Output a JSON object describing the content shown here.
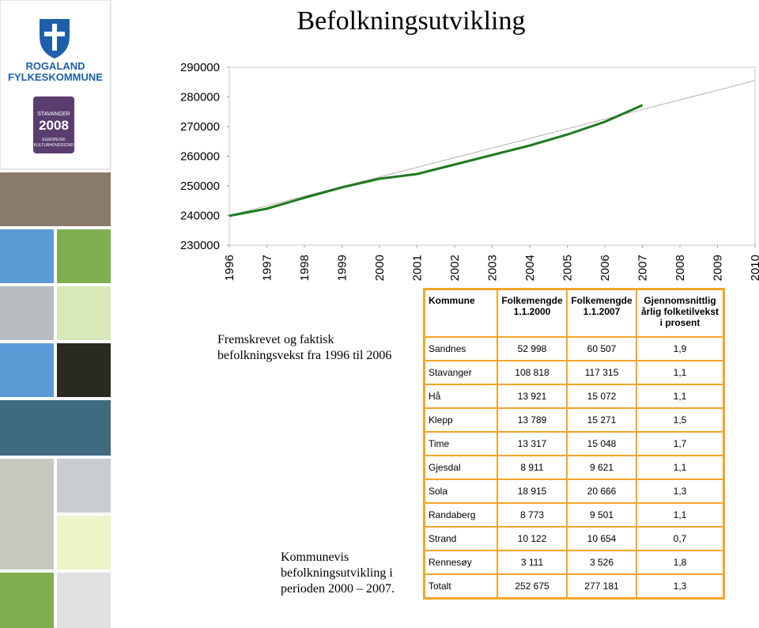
{
  "title": "Befolkningsutvikling",
  "logo": {
    "line1": "ROGALAND",
    "line2": "FYLKESKOMMUNE"
  },
  "badge": {
    "line1": "STAVANGER",
    "line2": "2008",
    "line3": "EUROPEISK",
    "line4": "KULTURHOVEDSTAD"
  },
  "chart_data": {
    "type": "line",
    "x": [
      1996,
      1997,
      1998,
      1999,
      2000,
      2001,
      2002,
      2003,
      2004,
      2005,
      2006,
      2007,
      2008,
      2009,
      2010
    ],
    "xlim": [
      1996,
      2010
    ],
    "xticks": [
      1996,
      1997,
      1998,
      1999,
      2000,
      2001,
      2002,
      2003,
      2004,
      2005,
      2006,
      2007,
      2008,
      2009,
      2010
    ],
    "ylim": [
      230000,
      290000
    ],
    "yticks": [
      230000,
      240000,
      250000,
      260000,
      270000,
      280000,
      290000
    ],
    "series": [
      {
        "color": "#b0b0b0",
        "line_width": 1,
        "values": [
          240000,
          243250,
          246500,
          249750,
          253000,
          256250,
          259500,
          262750,
          266000,
          269250,
          272500,
          275750,
          279000,
          282250,
          285500
        ]
      },
      {
        "color": "#1f7a1f",
        "line_width": 3,
        "values": [
          239900,
          242300,
          246000,
          249500,
          252400,
          254000,
          257200,
          260400,
          263600,
          267300,
          271600,
          277200,
          null,
          null,
          null
        ]
      }
    ],
    "caption": "Fremskrevet og faktisk befolkningsvekst fra 1996 til 2006"
  },
  "table": {
    "header": [
      "Kommune",
      "Folkemengde 1.1.2000",
      "Folkemengde 1.1.2007",
      "Gjennomsnittlig årlig folketilvekst i prosent"
    ],
    "rows": [
      [
        "Sandnes",
        "52 998",
        "60 507",
        "1,9"
      ],
      [
        "Stavanger",
        "108 818",
        "117 315",
        "1,1"
      ],
      [
        "Hå",
        "13 921",
        "15 072",
        "1,1"
      ],
      [
        "Klepp",
        "13 789",
        "15 271",
        "1,5"
      ],
      [
        "Time",
        "13 317",
        "15 048",
        "1,7"
      ],
      [
        "Gjesdal",
        "8 911",
        "9 621",
        "1,1"
      ],
      [
        "Sola",
        "18 915",
        "20 666",
        "1,3"
      ],
      [
        "Randaberg",
        "8 773",
        "9 501",
        "1,1"
      ],
      [
        "Strand",
        "10 122",
        "10 654",
        "0,7"
      ],
      [
        "Rennesøy",
        "3 111",
        "3 526",
        "1,8"
      ],
      [
        "Totalt",
        "252 675",
        "277 181",
        "1,3"
      ]
    ],
    "caption": "Kommunevis befolkningsutvikling i perioden 2000 – 2007."
  }
}
